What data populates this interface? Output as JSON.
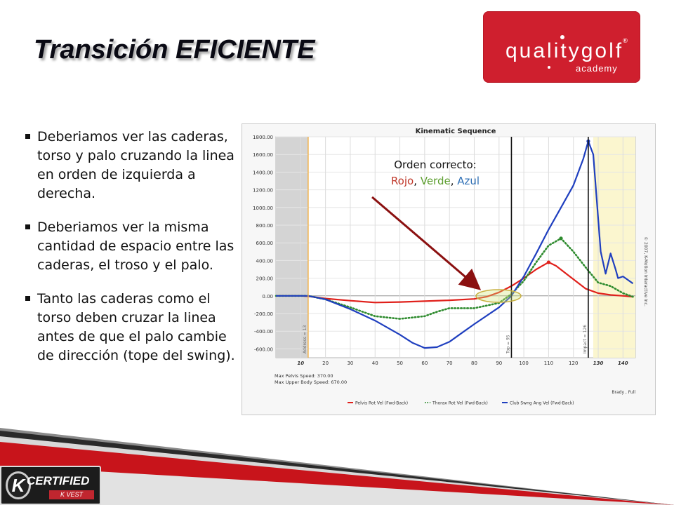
{
  "slide": {
    "title": "Transición EFICIENTE",
    "logo": {
      "word": "qualitygolf",
      "sub": "academy",
      "reg": "®"
    },
    "bullets": [
      "Deberiamos ver las caderas, torso y palo cruzando la linea en orden de izquierda a derecha.",
      "Deberiamos ver la misma cantidad de espacio entre las caderas, el troso y el palo.",
      "Tanto las caderas como el torso deben cruzar la linea antes de que el palo cambie de dirección (tope del swing)."
    ],
    "annotation": {
      "line1": "Orden correcto:",
      "rojo": "Rojo",
      "comma1": ", ",
      "verde": "Verde",
      "comma2": ", ",
      "azul": "Azul"
    },
    "badge": {
      "k": "K",
      "certified": "CERTIFIED",
      "kvest": "K VEST"
    }
  },
  "colors": {
    "red": "#e0201b",
    "green": "#2e8b2e",
    "blue": "#1f3fbf",
    "logo_red": "#cf1f2e",
    "arrow": "#8b1010"
  },
  "chart_data": {
    "type": "line",
    "title": "Kinematic Sequence",
    "copyright": "© 2007, K-Motion Interactive Inc.",
    "ylim": [
      -700,
      1800
    ],
    "xlim": [
      0,
      145
    ],
    "y_ticks": [
      "1800.00",
      "1600.00",
      "1400.00",
      "1200.00",
      "1000.00",
      "800.00",
      "600.00",
      "400.00",
      "200.00",
      "0.00",
      "-200.00",
      "-400.00",
      "-600.00"
    ],
    "y_tick_values": [
      1800,
      1600,
      1400,
      1200,
      1000,
      800,
      600,
      400,
      200,
      0,
      -200,
      -400,
      -600
    ],
    "x_tick_values": [
      10,
      20,
      30,
      40,
      50,
      60,
      70,
      80,
      90,
      100,
      110,
      120,
      130,
      140
    ],
    "x_tick_labels": [
      "10",
      "20",
      "30",
      "40",
      "50",
      "60",
      "70",
      "80",
      "90",
      "100",
      "110",
      "120",
      "130",
      "140"
    ],
    "markers": [
      {
        "label": "Address = 13",
        "x": 13
      },
      {
        "label": "Top = 95",
        "x": 95
      },
      {
        "label": "Impact = 126",
        "x": 126
      }
    ],
    "stats": [
      "Max Pelvis Speed:  370.00",
      "Max Upper Body Speed:  670.00"
    ],
    "footer_right": "Brady , Full",
    "series": [
      {
        "name": "Pelvis Rot Vel (Fwd-Back)",
        "color": "#e0201b",
        "style": "solid",
        "x": [
          0,
          5,
          10,
          13,
          20,
          30,
          40,
          50,
          60,
          70,
          80,
          85,
          90,
          95,
          100,
          105,
          110,
          113,
          118,
          125,
          130,
          135,
          140,
          144
        ],
        "y": [
          0,
          0,
          0,
          -5,
          -30,
          -55,
          -75,
          -70,
          -60,
          -50,
          -35,
          -10,
          40,
          110,
          200,
          300,
          380,
          340,
          230,
          80,
          30,
          10,
          0,
          -10
        ]
      },
      {
        "name": "Thorax Rot Vel (Fwd-Back)",
        "color": "#2e8b2e",
        "style": "dotted",
        "x": [
          0,
          5,
          10,
          13,
          20,
          30,
          40,
          50,
          60,
          65,
          70,
          80,
          85,
          90,
          95,
          100,
          105,
          110,
          115,
          120,
          125,
          130,
          135,
          140,
          144
        ],
        "y": [
          0,
          0,
          0,
          0,
          -40,
          -130,
          -230,
          -260,
          -230,
          -180,
          -140,
          -140,
          -110,
          -80,
          20,
          170,
          380,
          570,
          650,
          500,
          320,
          150,
          110,
          30,
          -10
        ]
      },
      {
        "name": "Club Swng Ang Vel (Fwd-Back)",
        "color": "#1f3fbf",
        "style": "solid",
        "x": [
          0,
          5,
          10,
          13,
          20,
          30,
          40,
          50,
          55,
          60,
          65,
          70,
          75,
          80,
          90,
          95,
          100,
          105,
          110,
          115,
          120,
          124,
          126,
          128,
          131,
          133,
          135,
          137,
          138,
          140,
          142,
          144
        ],
        "y": [
          0,
          0,
          0,
          0,
          -40,
          -150,
          -280,
          -440,
          -530,
          -590,
          -580,
          -520,
          -420,
          -320,
          -130,
          0,
          220,
          480,
          750,
          1000,
          1250,
          1550,
          1750,
          1600,
          500,
          250,
          480,
          300,
          200,
          220,
          180,
          140
        ]
      }
    ]
  }
}
